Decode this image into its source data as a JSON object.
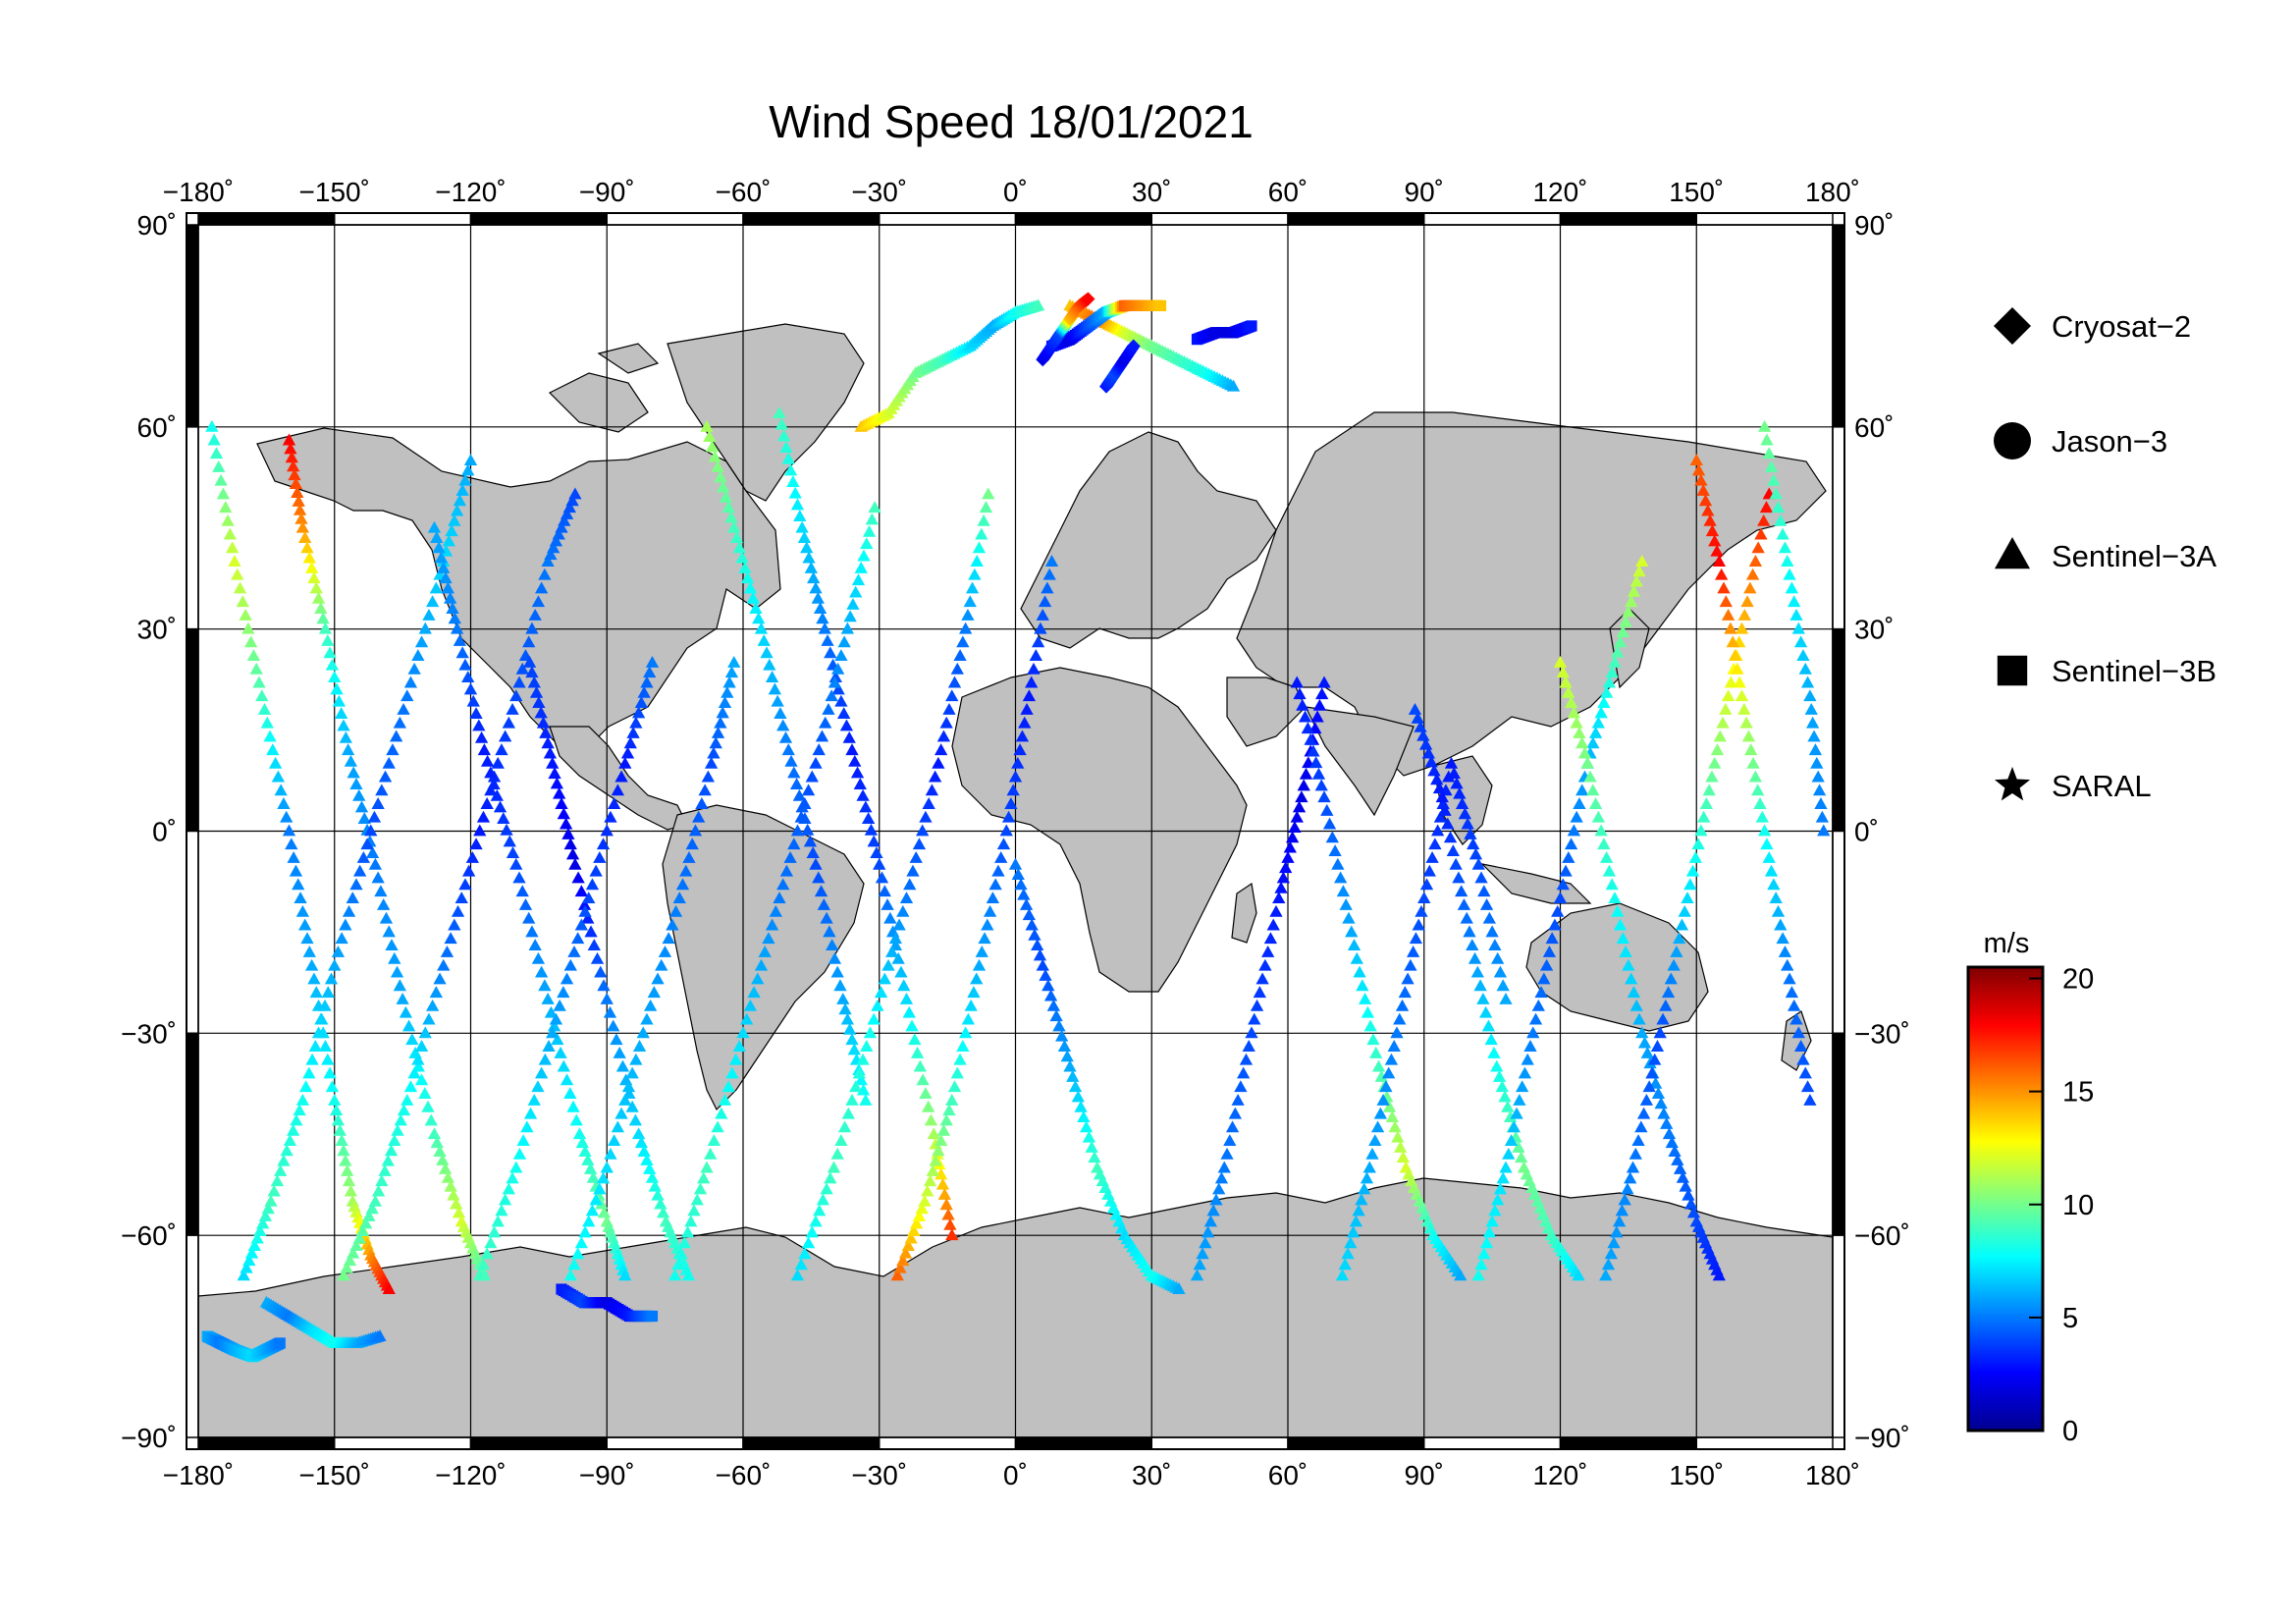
{
  "title": "Wind Speed 18/01/2021",
  "map": {
    "projection": "plate-carree",
    "lon_range": [
      -180,
      180
    ],
    "lat_range": [
      -90,
      90
    ],
    "lon_ticks": [
      -180,
      -150,
      -120,
      -90,
      -60,
      -30,
      0,
      30,
      60,
      90,
      120,
      150,
      180
    ],
    "lat_ticks": [
      90,
      60,
      30,
      0,
      -30,
      -60,
      -90
    ],
    "lon_tick_labels": [
      "−180˚",
      "−150˚",
      "−120˚",
      "−90˚",
      "−60˚",
      "−30˚",
      "0˚",
      "30˚",
      "60˚",
      "90˚",
      "120˚",
      "150˚",
      "180˚"
    ],
    "lat_tick_labels": [
      "90˚",
      "60˚",
      "30˚",
      "0˚",
      "−30˚",
      "−60˚",
      "−90˚"
    ],
    "grid": true,
    "land_color": "#c0c0c0",
    "ocean_color": "#ffffff",
    "frame_color": "#000000"
  },
  "legend": {
    "placement": "right",
    "items": [
      {
        "label": "Cryosat−2",
        "symbol": "diamond"
      },
      {
        "label": "Jason−3",
        "symbol": "circle"
      },
      {
        "label": "Sentinel−3A",
        "symbol": "triangle"
      },
      {
        "label": "Sentinel−3B",
        "symbol": "square"
      },
      {
        "label": "SARAL",
        "symbol": "star"
      }
    ]
  },
  "colorbar": {
    "unit": "m/s",
    "range": [
      0,
      20.5
    ],
    "ticks": [
      0,
      5,
      10,
      15,
      20
    ],
    "tick_labels": [
      "0",
      "5",
      "10",
      "15",
      "20"
    ],
    "colormap": "jet"
  },
  "chart_data": {
    "type": "scatter",
    "title": "Wind Speed 18/01/2021",
    "x_variable": "longitude",
    "y_variable": "latitude",
    "value_variable": "wind speed (m/s)",
    "series": [
      {
        "name": "Sentinel−3A",
        "symbol": "triangle",
        "tracks": [
          {
            "lon": [
              -177,
              -172,
              -166,
              -160,
              -155,
              -150,
              -146,
              -142,
              -138
            ],
            "lat": [
              60,
              40,
              20,
              0,
              -20,
              -40,
              -55,
              -63,
              -68
            ],
            "speed": [
              8,
              12,
              9,
              5,
              6,
              8,
              11,
              15,
              18
            ]
          },
          {
            "lon": [
              -160,
              -157,
              -152,
              -147,
              -141,
              -135,
              -128,
              -122,
              -117
            ],
            "lat": [
              58,
              45,
              30,
              12,
              -5,
              -25,
              -45,
              -58,
              -66
            ],
            "speed": [
              18,
              15,
              9,
              6,
              5,
              6,
              9,
              12,
              9
            ]
          },
          {
            "lon": [
              -170,
              -164,
              -157,
              -150,
              -142,
              -134,
              -126,
              -120
            ],
            "lat": [
              -66,
              -55,
              -40,
              -20,
              0,
              20,
              40,
              55
            ],
            "speed": [
              7,
              9,
              8,
              6,
              4,
              5,
              7,
              6
            ]
          },
          {
            "lon": [
              -148,
              -141,
              -134,
              -126,
              -118,
              -110,
              -103,
              -97
            ],
            "lat": [
              -66,
              -55,
              -40,
              -20,
              0,
              20,
              40,
              50
            ],
            "speed": [
              10,
              9,
              8,
              5,
              3,
              4,
              5,
              4
            ]
          },
          {
            "lon": [
              -128,
              -123,
              -117,
              -110,
              -103,
              -96,
              -90,
              -86
            ],
            "lat": [
              45,
              30,
              12,
              -5,
              -25,
              -45,
              -58,
              -66
            ],
            "speed": [
              6,
              5,
              3,
              4,
              6,
              8,
              10,
              7
            ]
          },
          {
            "lon": [
              -107,
              -102,
              -97,
              -90,
              -83,
              -77,
              -72
            ],
            "lat": [
              25,
              10,
              -5,
              -25,
              -45,
              -58,
              -66
            ],
            "speed": [
              4,
              3,
              2,
              5,
              7,
              9,
              8
            ]
          },
          {
            "lon": [
              -118,
              -110,
              -102,
              -94,
              -86,
              -80
            ],
            "lat": [
              -66,
              -50,
              -30,
              -10,
              10,
              25
            ],
            "speed": [
              9,
              8,
              6,
              4,
              3,
              5
            ]
          },
          {
            "lon": [
              -98,
              -90,
              -82,
              -74,
              -67,
              -62
            ],
            "lat": [
              -66,
              -50,
              -30,
              -10,
              10,
              25
            ],
            "speed": [
              8,
              7,
              6,
              5,
              4,
              6
            ]
          },
          {
            "lon": [
              -68,
              -62,
              -56,
              -50,
              -44,
              -38,
              -33
            ],
            "lat": [
              60,
              45,
              30,
              12,
              -5,
              -25,
              -40
            ],
            "speed": [
              11,
              9,
              7,
              5,
              4,
              6,
              8
            ]
          },
          {
            "lon": [
              -52,
              -47,
              -42,
              -36,
              -30,
              -24,
              -18,
              -14
            ],
            "lat": [
              62,
              45,
              30,
              12,
              -5,
              -25,
              -45,
              -60
            ],
            "speed": [
              9,
              7,
              5,
              3,
              4,
              7,
              11,
              17
            ]
          },
          {
            "lon": [
              -75,
              -68,
              -60,
              -52,
              -44,
              -37,
              -31
            ],
            "lat": [
              -66,
              -50,
              -30,
              -10,
              10,
              30,
              48
            ],
            "speed": [
              8,
              9,
              7,
              5,
              4,
              6,
              9
            ]
          },
          {
            "lon": [
              -48,
              -40,
              -32,
              -24,
              -17,
              -11,
              -6
            ],
            "lat": [
              -66,
              -50,
              -30,
              -10,
              10,
              30,
              50
            ],
            "speed": [
              7,
              9,
              8,
              5,
              3,
              5,
              10
            ]
          },
          {
            "lon": [
              -26,
              -20,
              -14,
              -8,
              -2,
              3,
              8
            ],
            "lat": [
              -66,
              -55,
              -40,
              -20,
              0,
              20,
              40
            ],
            "speed": [
              16,
              12,
              9,
              6,
              4,
              3,
              5
            ]
          },
          {
            "lon": [
              -34,
              -28,
              -22,
              -16,
              -10,
              -5,
              0,
              5
            ],
            "lat": [
              60,
              62,
              68,
              70,
              72,
              75,
              77,
              78
            ],
            "speed": [
              14,
              12,
              10,
              9,
              7,
              6,
              8,
              9
            ]
          },
          {
            "lon": [
              0,
              6,
              12,
              18,
              24,
              30,
              36
            ],
            "lat": [
              -5,
              -20,
              -35,
              -50,
              -60,
              -66,
              -68
            ],
            "speed": [
              5,
              4,
              6,
              9,
              7,
              8,
              6
            ]
          },
          {
            "lon": [
              40,
              46,
              52,
              58,
              63,
              68
            ],
            "lat": [
              -66,
              -50,
              -30,
              -10,
              5,
              22
            ],
            "speed": [
              6,
              5,
              4,
              3,
              2,
              3
            ]
          },
          {
            "lon": [
              62,
              68,
              74,
              80,
              86,
              92,
              98
            ],
            "lat": [
              22,
              5,
              -15,
              -35,
              -50,
              -60,
              -66
            ],
            "speed": [
              3,
              4,
              6,
              9,
              12,
              8,
              6
            ]
          },
          {
            "lon": [
              72,
              78,
              84,
              90,
              96,
              102,
              108
            ],
            "lat": [
              -66,
              -50,
              -30,
              -10,
              10,
              -5,
              -25
            ],
            "speed": [
              7,
              6,
              5,
              4,
              3,
              4,
              6
            ]
          },
          {
            "lon": [
              88,
              94,
              100,
              106,
              112,
              118,
              124
            ],
            "lat": [
              18,
              5,
              -15,
              -35,
              -50,
              -60,
              -66
            ],
            "speed": [
              4,
              3,
              5,
              8,
              10,
              9,
              7
            ]
          },
          {
            "lon": [
              102,
              108,
              114,
              120,
              126,
              132,
              138
            ],
            "lat": [
              -66,
              -50,
              -30,
              -10,
              10,
              25,
              40
            ],
            "speed": [
              8,
              7,
              5,
              4,
              6,
              9,
              12
            ]
          },
          {
            "lon": [
              120,
              126,
              132,
              138,
              144,
              150,
              155
            ],
            "lat": [
              25,
              10,
              -10,
              -30,
              -45,
              -58,
              -66
            ],
            "speed": [
              12,
              10,
              8,
              6,
              5,
              4,
              3
            ]
          },
          {
            "lon": [
              130,
              136,
              142,
              148,
              154,
              160,
              166
            ],
            "lat": [
              -66,
              -50,
              -30,
              -10,
              10,
              30,
              50
            ],
            "speed": [
              6,
              5,
              4,
              7,
              10,
              14,
              18
            ]
          },
          {
            "lon": [
              150,
              155,
              160,
              165,
              170,
              175
            ],
            "lat": [
              55,
              40,
              20,
              0,
              -20,
              -40
            ],
            "speed": [
              16,
              18,
              12,
              8,
              5,
              4
            ]
          },
          {
            "lon": [
              165,
              170,
              175,
              178
            ],
            "lat": [
              60,
              40,
              20,
              0
            ],
            "speed": [
              10,
              8,
              6,
              5
            ]
          },
          {
            "lon": [
              -165,
              -160,
              -155,
              -150,
              -145,
              -140
            ],
            "lat": [
              -70,
              -72,
              -74,
              -76,
              -76,
              -75
            ],
            "speed": [
              6,
              5,
              7,
              8,
              6,
              5
            ]
          },
          {
            "lon": [
              12,
              18,
              24,
              30,
              36,
              42,
              48
            ],
            "lat": [
              78,
              76,
              74,
              72,
              70,
              68,
              66
            ],
            "speed": [
              14,
              16,
              12,
              10,
              9,
              8,
              6
            ]
          }
        ]
      },
      {
        "name": "Sentinel−3B",
        "symbol": "square",
        "tracks": [
          {
            "lon": [
              -178,
              -175,
              -172,
              -168,
              -165,
              -162
            ],
            "lat": [
              -75,
              -76,
              -77,
              -78,
              -77,
              -76
            ],
            "speed": [
              6,
              5,
              6,
              7,
              6,
              5
            ]
          },
          {
            "lon": [
              8,
              12,
              16,
              20,
              24,
              28,
              32
            ],
            "lat": [
              72,
              73,
              75,
              77,
              78,
              78,
              78
            ],
            "speed": [
              3,
              2,
              4,
              6,
              16,
              15,
              14
            ]
          },
          {
            "lon": [
              40,
              44,
              48,
              52
            ],
            "lat": [
              73,
              74,
              74,
              75
            ],
            "speed": [
              3,
              2,
              2,
              3
            ]
          },
          {
            "lon": [
              -100,
              -95,
              -90,
              -85,
              -80
            ],
            "lat": [
              -68,
              -70,
              -70,
              -72,
              -72
            ],
            "speed": [
              3,
              4,
              2,
              3,
              5
            ]
          }
        ]
      },
      {
        "name": "Cryosat−2",
        "symbol": "diamond",
        "tracks": [
          {
            "lon": [
              6,
              8,
              10,
              12,
              14,
              16
            ],
            "lat": [
              70,
              72,
              74,
              76,
              78,
              79
            ],
            "speed": [
              2,
              3,
              4,
              14,
              16,
              18
            ]
          },
          {
            "lon": [
              20,
              22,
              24,
              26
            ],
            "lat": [
              66,
              68,
              70,
              72
            ],
            "speed": [
              3,
              4,
              2,
              3
            ]
          }
        ]
      },
      {
        "name": "Jason−3",
        "symbol": "circle",
        "tracks": []
      },
      {
        "name": "SARAL",
        "symbol": "star",
        "tracks": []
      }
    ]
  }
}
